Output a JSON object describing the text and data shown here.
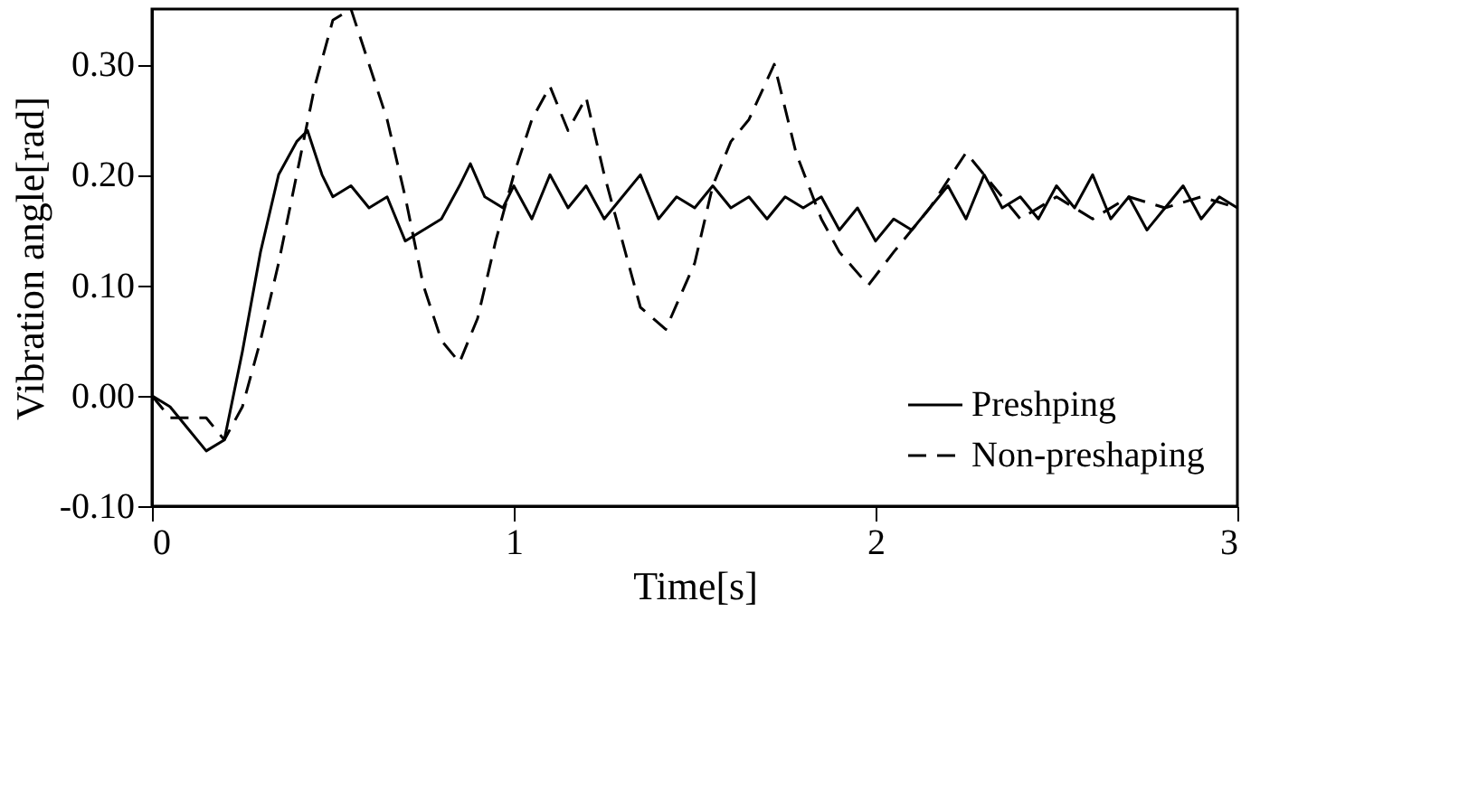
{
  "chart_data": {
    "type": "line",
    "xlabel": "Time[s]",
    "ylabel": "Vibration angle[rad]",
    "xlim": [
      0,
      3
    ],
    "ylim": [
      -0.1,
      0.35
    ],
    "xticks": [
      0,
      1,
      2,
      3
    ],
    "yticks": [
      {
        "value": -0.1,
        "label": "-0.10"
      },
      {
        "value": 0,
        "label": "0.00"
      },
      {
        "value": 0.1,
        "label": "0.10"
      },
      {
        "value": 0.2,
        "label": "0.20"
      },
      {
        "value": 0.3,
        "label": "0.30"
      }
    ],
    "grid": false,
    "legend": "bottom right",
    "marker": "none",
    "series": [
      {
        "name": "Preshping",
        "color": "#000000",
        "line_style": "solid",
        "x": [
          0,
          0.05,
          0.1,
          0.15,
          0.2,
          0.25,
          0.3,
          0.35,
          0.4,
          0.43,
          0.47,
          0.5,
          0.55,
          0.6,
          0.65,
          0.7,
          0.75,
          0.8,
          0.85,
          0.88,
          0.92,
          0.97,
          1.0,
          1.05,
          1.1,
          1.15,
          1.2,
          1.25,
          1.3,
          1.35,
          1.4,
          1.45,
          1.5,
          1.55,
          1.6,
          1.65,
          1.7,
          1.75,
          1.8,
          1.85,
          1.9,
          1.95,
          2.0,
          2.05,
          2.1,
          2.15,
          2.2,
          2.25,
          2.3,
          2.35,
          2.4,
          2.45,
          2.5,
          2.55,
          2.6,
          2.65,
          2.7,
          2.75,
          2.8,
          2.85,
          2.9,
          2.95,
          3.0
        ],
        "values": [
          0.0,
          -0.01,
          -0.03,
          -0.05,
          -0.04,
          0.04,
          0.13,
          0.2,
          0.23,
          0.24,
          0.2,
          0.18,
          0.19,
          0.17,
          0.18,
          0.14,
          0.15,
          0.16,
          0.19,
          0.21,
          0.18,
          0.17,
          0.19,
          0.16,
          0.2,
          0.17,
          0.19,
          0.16,
          0.18,
          0.2,
          0.16,
          0.18,
          0.17,
          0.19,
          0.17,
          0.18,
          0.16,
          0.18,
          0.17,
          0.18,
          0.15,
          0.17,
          0.14,
          0.16,
          0.15,
          0.17,
          0.19,
          0.16,
          0.2,
          0.17,
          0.18,
          0.16,
          0.19,
          0.17,
          0.2,
          0.16,
          0.18,
          0.15,
          0.17,
          0.19,
          0.16,
          0.18,
          0.17
        ]
      },
      {
        "name": "Non-preshaping",
        "color": "#000000",
        "line_style": "dashed",
        "x": [
          0,
          0.05,
          0.1,
          0.15,
          0.2,
          0.25,
          0.3,
          0.35,
          0.4,
          0.45,
          0.5,
          0.55,
          0.6,
          0.65,
          0.7,
          0.75,
          0.8,
          0.85,
          0.9,
          0.95,
          1.0,
          1.05,
          1.1,
          1.15,
          1.2,
          1.25,
          1.3,
          1.35,
          1.42,
          1.5,
          1.55,
          1.6,
          1.65,
          1.72,
          1.78,
          1.85,
          1.9,
          1.98,
          2.05,
          2.1,
          2.15,
          2.25,
          2.3,
          2.4,
          2.5,
          2.6,
          2.7,
          2.8,
          2.9,
          3.0
        ],
        "values": [
          0.0,
          -0.02,
          -0.02,
          -0.02,
          -0.04,
          -0.01,
          0.05,
          0.12,
          0.2,
          0.28,
          0.34,
          0.35,
          0.3,
          0.25,
          0.18,
          0.1,
          0.05,
          0.03,
          0.07,
          0.14,
          0.2,
          0.25,
          0.28,
          0.24,
          0.27,
          0.2,
          0.14,
          0.08,
          0.06,
          0.12,
          0.19,
          0.23,
          0.25,
          0.3,
          0.22,
          0.16,
          0.13,
          0.1,
          0.13,
          0.15,
          0.17,
          0.22,
          0.2,
          0.16,
          0.18,
          0.16,
          0.18,
          0.17,
          0.18,
          0.17
        ]
      }
    ]
  }
}
